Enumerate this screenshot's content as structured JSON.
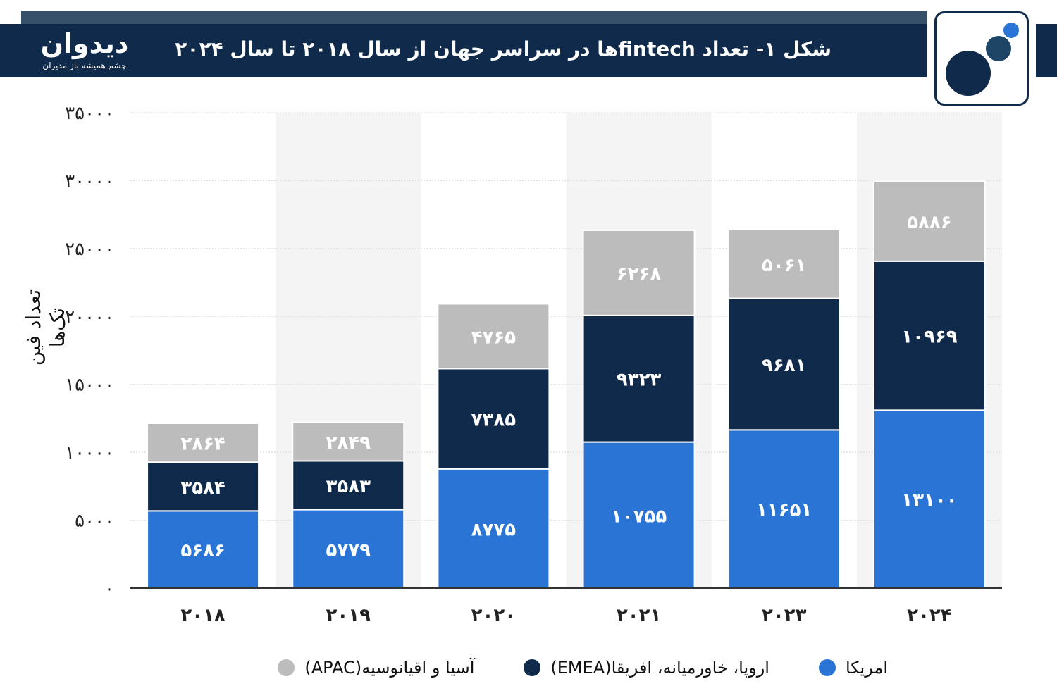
{
  "header": {
    "brand_name": "دیدوان",
    "brand_tagline": "چشم همیشه باز مدیران",
    "title": "شکل ۱- تعداد fintechها در سراسر جهان از سال ۲۰۱۸ تا سال ۲۰۲۴"
  },
  "colors": {
    "header_bg": "#0f2a4a",
    "header_topline": "#36506a",
    "americas": "#2a74d6",
    "emea": "#0f2a4a",
    "apac": "#bcbcbc",
    "alt_column_bg": "#f4f4f4"
  },
  "chart_data": {
    "type": "bar",
    "stacked": true,
    "categories": [
      "۲۰۱۸",
      "۲۰۱۹",
      "۲۰۲۰",
      "۲۰۲۱",
      "۲۰۲۳",
      "۲۰۲۴"
    ],
    "series": [
      {
        "name": "امریکا",
        "color": "#2a74d6",
        "values": [
          5686,
          5779,
          8775,
          10755,
          11651,
          13100
        ],
        "labels": [
          "۵۶۸۶",
          "۵۷۷۹",
          "۸۷۷۵",
          "۱۰۷۵۵",
          "۱۱۶۵۱",
          "۱۳۱۰۰"
        ]
      },
      {
        "name": "اروپا، خاورمیانه، افریقا(EMEA)",
        "color": "#0f2a4a",
        "values": [
          3584,
          3583,
          7385,
          9323,
          9681,
          10969
        ],
        "labels": [
          "۳۵۸۴",
          "۳۵۸۳",
          "۷۳۸۵",
          "۹۳۲۳",
          "۹۶۸۱",
          "۱۰۹۶۹"
        ]
      },
      {
        "name": "آسیا و اقیانوسیه(APAC)",
        "color": "#bcbcbc",
        "values": [
          2864,
          2849,
          4765,
          6268,
          5061,
          5886
        ],
        "labels": [
          "۲۸۶۴",
          "۲۸۴۹",
          "۴۷۶۵",
          "۶۲۶۸",
          "۵۰۶۱",
          "۵۸۸۶"
        ]
      }
    ],
    "y_ticks": [
      0,
      5000,
      10000,
      15000,
      20000,
      25000,
      30000,
      35000
    ],
    "y_tick_labels": [
      "۰",
      "۵۰۰۰",
      "۱۰۰۰۰",
      "۱۵۰۰۰",
      "۲۰۰۰۰",
      "۲۵۰۰۰",
      "۳۰۰۰۰",
      "۳۵۰۰۰"
    ],
    "ylabel": "تعداد فین تک‌ها",
    "xlabel": "",
    "ylim": [
      0,
      35000
    ],
    "grid": true,
    "legend_position": "bottom"
  }
}
